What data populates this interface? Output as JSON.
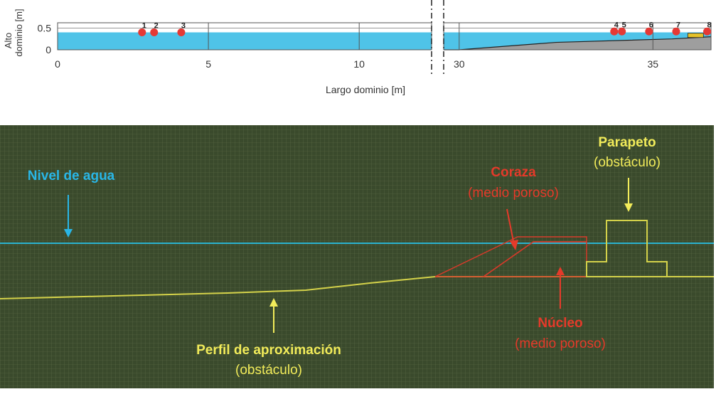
{
  "chart_data": {
    "type": "area",
    "xlabel": "Largo dominio [m]",
    "ylabel_lines": [
      "Alto",
      "dominio [m]"
    ],
    "segments": [
      {
        "xlim": [
          0,
          12.4
        ],
        "ticks": [
          0,
          5,
          10
        ]
      },
      {
        "xlim": [
          29.6,
          36.5
        ],
        "ticks": [
          30,
          35
        ]
      }
    ],
    "ylim": [
      0,
      0.62
    ],
    "yticks": [
      0,
      0.5
    ],
    "water_level": 0.4,
    "water_color": "#4fc3e8",
    "bottom_profile": [
      [
        29.6,
        0
      ],
      [
        30.0,
        0
      ],
      [
        32.5,
        0.17
      ],
      [
        35.5,
        0.25
      ],
      [
        36.5,
        0.3
      ]
    ],
    "gauges": [
      {
        "label": "1",
        "x": 2.8,
        "y": 0.4
      },
      {
        "label": "2",
        "x": 3.2,
        "y": 0.4
      },
      {
        "label": "3",
        "x": 4.1,
        "y": 0.4
      },
      {
        "label": "4",
        "x": 34.0,
        "y": 0.42
      },
      {
        "label": "5",
        "x": 34.2,
        "y": 0.42
      },
      {
        "label": "6",
        "x": 34.9,
        "y": 0.42
      },
      {
        "label": "7",
        "x": 35.6,
        "y": 0.42
      },
      {
        "label": "8",
        "x": 36.4,
        "y": 0.42
      }
    ],
    "gauge_color": "#e53935"
  },
  "diagram": {
    "labels": {
      "water_level": "Nivel de agua",
      "armor_title": "Coraza",
      "armor_sub": "(medio poroso)",
      "parapet_title": "Parapeto",
      "parapet_sub": "(obstáculo)",
      "core_title": "Núcleo",
      "core_sub": "(medio poroso)",
      "profile_title": "Perfil de aproximación",
      "profile_sub": "(obstáculo)"
    },
    "colors": {
      "background": "#3a4a2c",
      "grid": "#5f6e48",
      "water": "#2bb3cf",
      "profile": "#d4d24a",
      "porous": "#d53a2a",
      "label_cyan": "#29b6e6",
      "label_yellow": "#f2ec5a",
      "label_red": "#e53a2a"
    }
  }
}
